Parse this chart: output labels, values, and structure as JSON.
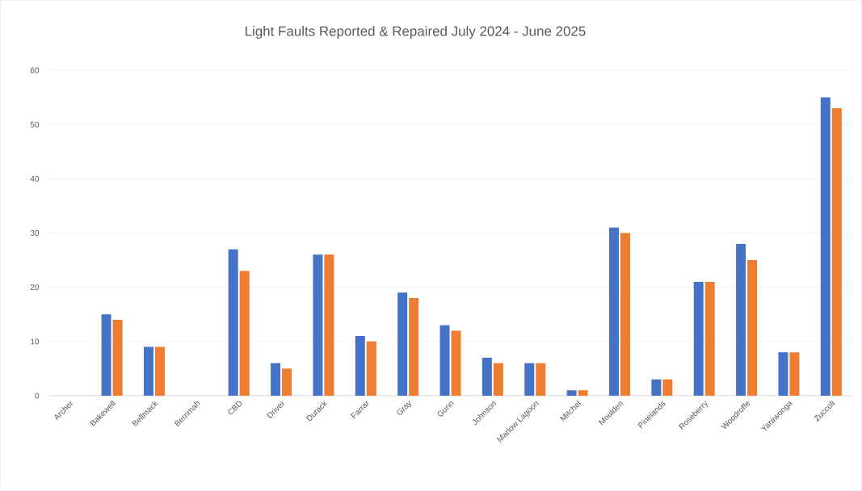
{
  "chart_data": {
    "type": "bar",
    "title": "Light Faults Reported & Repaired July 2024 - June 2025",
    "categories": [
      "Archer",
      "Bakewell",
      "Bellmack",
      "Berrimah",
      "CBD",
      "Driver",
      "Durack",
      "Farrar",
      "Gray",
      "Gunn",
      "Johnson",
      "Marlow Lagoon",
      "Mitchel",
      "Moulden",
      "Pinelands",
      "Roseberry",
      "Woodroffe",
      "Yarawonga",
      "Zuccoli"
    ],
    "series": [
      {
        "color": "#4472c4",
        "values": [
          0,
          15,
          9,
          0,
          27,
          6,
          26,
          11,
          19,
          13,
          7,
          6,
          1,
          31,
          3,
          21,
          28,
          8,
          55
        ]
      },
      {
        "color": "#ed7d31",
        "values": [
          0,
          14,
          9,
          0,
          23,
          5,
          26,
          10,
          18,
          12,
          6,
          6,
          1,
          30,
          3,
          21,
          25,
          8,
          53
        ]
      }
    ],
    "ylim": [
      0,
      60
    ],
    "yticks": [
      0,
      10,
      20,
      30,
      40,
      50,
      60
    ],
    "grid": "y"
  }
}
